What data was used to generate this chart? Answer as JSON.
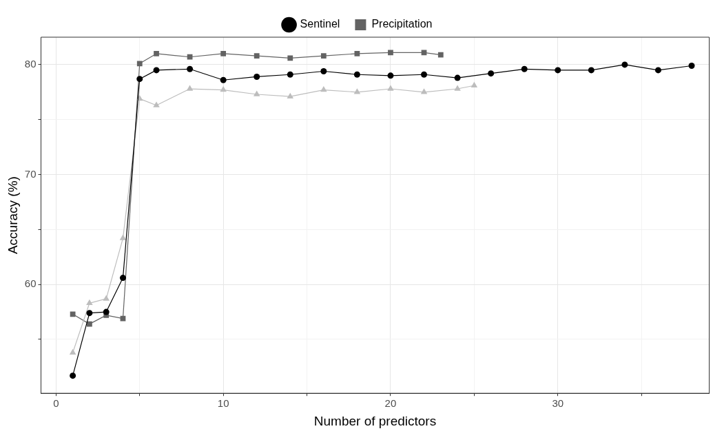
{
  "chart_data": {
    "type": "line",
    "xlabel": "Number of predictors",
    "ylabel": "Accuracy (%)",
    "xlim": [
      -0.9,
      39.05
    ],
    "ylim": [
      50.1,
      82.5
    ],
    "xticks": [
      0,
      {
        "value": 5,
        "label": null
      },
      10,
      {
        "value": 15,
        "label": null
      },
      20,
      {
        "value": 25,
        "label": null
      },
      30,
      {
        "value": 35,
        "label": null
      }
    ],
    "yticks": [
      {
        "value": 55,
        "label": null
      },
      60,
      {
        "value": 65,
        "label": null
      },
      70,
      {
        "value": 75,
        "label": null
      },
      80
    ],
    "grid": true,
    "legend": "top",
    "line_style": "solid",
    "series": [
      {
        "name": "Sentinel",
        "color": "#000000",
        "marker": "circle",
        "x": [
          1,
          2,
          3,
          4,
          5,
          6,
          8,
          10,
          12,
          14,
          16,
          18,
          20,
          22,
          24,
          26,
          28,
          30,
          32,
          34,
          36,
          38
        ],
        "values": [
          51.7,
          57.4,
          57.5,
          60.6,
          78.7,
          79.5,
          79.6,
          78.6,
          78.9,
          79.1,
          79.4,
          79.1,
          79.0,
          79.1,
          78.8,
          79.2,
          79.6,
          79.5,
          79.5,
          80.0,
          79.5,
          79.9
        ]
      },
      {
        "color": "#bdbdbd",
        "marker": "triangle",
        "x": [
          1,
          2,
          3,
          4,
          5,
          6,
          8,
          10,
          12,
          14,
          16,
          18,
          20,
          22,
          24,
          25
        ],
        "values": [
          53.8,
          58.3,
          58.7,
          64.2,
          76.9,
          76.3,
          77.8,
          77.7,
          77.3,
          77.1,
          77.7,
          77.5,
          77.8,
          77.5,
          77.8,
          78.1
        ]
      },
      {
        "name": "Precipitation",
        "color": "#636363",
        "marker": "square",
        "x": [
          1,
          2,
          3,
          4,
          5,
          6,
          8,
          10,
          12,
          14,
          16,
          18,
          20,
          22,
          23
        ],
        "values": [
          57.3,
          56.4,
          57.2,
          56.9,
          80.1,
          81.0,
          80.7,
          81.0,
          80.8,
          80.6,
          80.8,
          81.0,
          81.1,
          81.1,
          80.9
        ]
      }
    ]
  }
}
